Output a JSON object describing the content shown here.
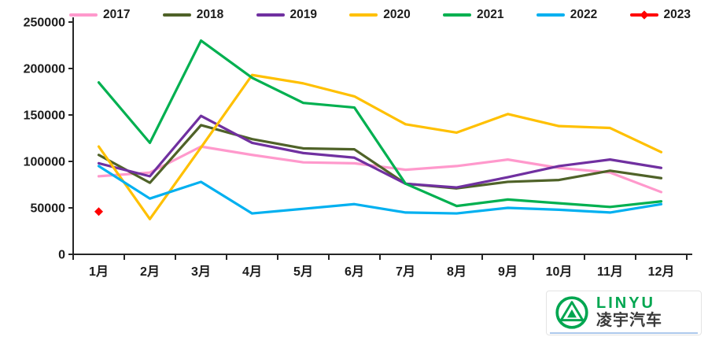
{
  "chart_data": {
    "type": "line",
    "title": "",
    "xlabel": "",
    "ylabel": "",
    "categories": [
      "1月",
      "2月",
      "3月",
      "4月",
      "5月",
      "6月",
      "7月",
      "8月",
      "9月",
      "10月",
      "11月",
      "12月"
    ],
    "series": [
      {
        "name": "2017",
        "color": "#FF99CC",
        "values": [
          84000,
          88000,
          116000,
          107000,
          99000,
          98000,
          91000,
          95000,
          102000,
          93000,
          88000,
          67000
        ]
      },
      {
        "name": "2018",
        "color": "#4F6228",
        "values": [
          107000,
          77000,
          139000,
          124000,
          114000,
          113000,
          76000,
          71000,
          78000,
          80000,
          90000,
          82000
        ]
      },
      {
        "name": "2019",
        "color": "#7030A0",
        "values": [
          98000,
          84000,
          149000,
          120000,
          109000,
          104000,
          76000,
          72000,
          83000,
          95000,
          102000,
          93000
        ]
      },
      {
        "name": "2020",
        "color": "#FFC000",
        "values": [
          116000,
          38000,
          115000,
          193000,
          184000,
          170000,
          140000,
          131000,
          151000,
          138000,
          136000,
          110000
        ]
      },
      {
        "name": "2021",
        "color": "#00B050",
        "values": [
          185000,
          120000,
          230000,
          190000,
          163000,
          158000,
          76000,
          52000,
          59000,
          55000,
          51000,
          57000
        ]
      },
      {
        "name": "2022",
        "color": "#00B0F0",
        "values": [
          95000,
          60000,
          78000,
          44000,
          49000,
          54000,
          45000,
          44000,
          50000,
          48000,
          45000,
          54000
        ]
      },
      {
        "name": "2023",
        "color": "#FF0000",
        "marker": "diamond",
        "values": [
          46000,
          null,
          null,
          null,
          null,
          null,
          null,
          null,
          null,
          null,
          null,
          null
        ]
      }
    ],
    "ylim": [
      0,
      250000
    ],
    "yticks": [
      0,
      50000,
      100000,
      150000,
      200000,
      250000
    ],
    "legend_position": "top",
    "grid": false
  },
  "logo": {
    "latin": "LINYU",
    "chinese": "凌宇汽车"
  },
  "colors": {
    "axis": "#262626",
    "text": "#1c1c1c",
    "background": "#ffffff",
    "logo_green": "#00A650",
    "logo_text": "#3a3a3a",
    "logo_underline": "#adc9ec"
  }
}
